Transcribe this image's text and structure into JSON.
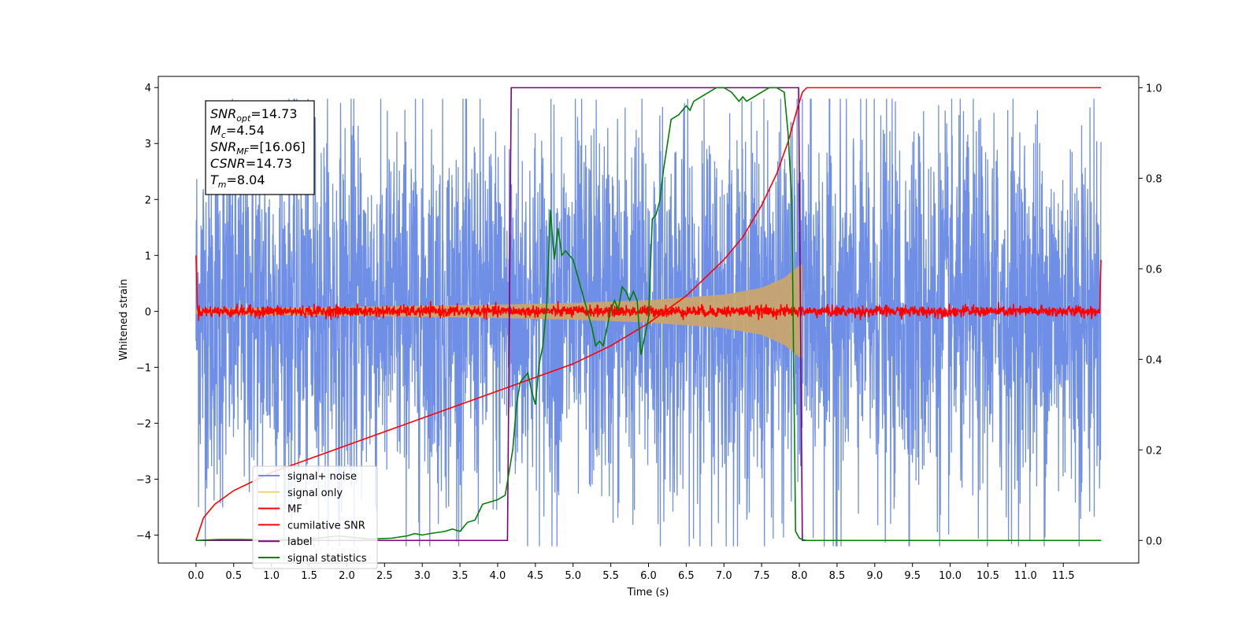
{
  "chart_data": {
    "type": "line",
    "xlabel": "Time (s)",
    "ylabel_left": "Whitened strain",
    "ylabel_right": "",
    "xlim": [
      -0.5,
      12.5
    ],
    "ylim_left": [
      -4.5,
      4.2
    ],
    "ylim_right": [
      -0.05,
      1.025
    ],
    "x_ticks": [
      0.0,
      0.5,
      1.0,
      1.5,
      2.0,
      2.5,
      3.0,
      3.5,
      4.0,
      4.5,
      5.0,
      5.5,
      6.0,
      6.5,
      7.0,
      7.5,
      8.0,
      8.5,
      9.0,
      9.5,
      10.0,
      10.5,
      11.0,
      11.5
    ],
    "x_tick_labels": [
      "0.0",
      "0.5",
      "1.0",
      "1.5",
      "2.0",
      "2.5",
      "3.0",
      "3.5",
      "4.0",
      "4.5",
      "5.0",
      "5.5",
      "6.0",
      "6.5",
      "7.0",
      "7.5",
      "8.0",
      "8.5",
      "9.0",
      "9.5",
      "10.0",
      "10.5",
      "11.0",
      "11.5"
    ],
    "y_ticks_left": [
      4,
      3,
      2,
      1,
      0,
      -1,
      -2,
      -3,
      -4
    ],
    "y_tick_labels_left": [
      "4",
      "3",
      "2",
      "1",
      "0",
      "−1",
      "−2",
      "−3",
      "−4"
    ],
    "y_ticks_right": [
      1.0,
      0.8,
      0.6,
      0.4,
      0.2,
      0.0
    ],
    "y_tick_labels_right": [
      "1.0",
      "0.8",
      "0.6",
      "0.4",
      "0.2",
      "0.0"
    ],
    "grid": false,
    "legend_position": "lower-left",
    "annotation": {
      "lines": [
        {
          "sym": "SNR",
          "sub": "opt",
          "val": "=14.73"
        },
        {
          "sym": "M",
          "sub": "c",
          "val": "=4.54"
        },
        {
          "sym": "SNR",
          "sub": "MF",
          "val": "=[16.06]"
        },
        {
          "sym": "CSNR",
          "sub": "",
          "val": "=14.73"
        },
        {
          "sym": "T",
          "sub": "m",
          "val": "=8.04"
        }
      ]
    },
    "series": [
      {
        "name": "signal+ noise",
        "axis": "left",
        "color": "#6f8fe6",
        "style": "noise",
        "x_range": [
          0.0,
          12.0
        ],
        "typical_amplitude": 2.0,
        "peak_range": [
          -4.2,
          3.8
        ]
      },
      {
        "name": "signal only",
        "axis": "left",
        "color": "#c8a56e",
        "style": "chirp-envelope",
        "x_range": [
          0.0,
          8.04
        ],
        "amplitude_points": [
          [
            0.0,
            0.05
          ],
          [
            2.0,
            0.08
          ],
          [
            4.0,
            0.12
          ],
          [
            5.0,
            0.15
          ],
          [
            6.0,
            0.2
          ],
          [
            7.0,
            0.3
          ],
          [
            7.5,
            0.42
          ],
          [
            7.8,
            0.6
          ],
          [
            8.0,
            0.82
          ],
          [
            8.04,
            0.85
          ]
        ]
      },
      {
        "name": "MF",
        "axis": "left",
        "color": "#ff0000",
        "style": "noise",
        "x_range": [
          0.0,
          12.0
        ],
        "typical_amplitude": 0.06,
        "edge_values": [
          1.0,
          0.92
        ]
      },
      {
        "name": "cumilative SNR",
        "axis": "right",
        "color": "#ff0000",
        "style": "line",
        "x": [
          0.0,
          0.1,
          0.25,
          0.5,
          1.0,
          1.5,
          2.0,
          2.5,
          3.0,
          3.5,
          4.0,
          4.5,
          5.0,
          5.5,
          6.0,
          6.5,
          7.0,
          7.25,
          7.5,
          7.7,
          7.85,
          7.95,
          8.04,
          8.1,
          12.0
        ],
        "y": [
          0.0,
          0.05,
          0.08,
          0.11,
          0.15,
          0.18,
          0.21,
          0.24,
          0.27,
          0.3,
          0.33,
          0.36,
          0.39,
          0.43,
          0.48,
          0.54,
          0.62,
          0.67,
          0.74,
          0.81,
          0.88,
          0.94,
          0.99,
          1.0,
          1.0
        ]
      },
      {
        "name": "label",
        "axis": "right",
        "color": "#7f007f",
        "style": "line",
        "x": [
          0.0,
          4.13,
          4.18,
          7.99,
          8.04,
          12.0
        ],
        "y": [
          0.0,
          0.0,
          1.0,
          1.0,
          0.0,
          0.0
        ]
      },
      {
        "name": "signal statistics",
        "axis": "right",
        "color": "#008000",
        "style": "line",
        "x": [
          0.0,
          0.3,
          0.6,
          1.0,
          1.5,
          1.9,
          2.0,
          2.3,
          2.6,
          2.8,
          2.9,
          3.0,
          3.1,
          3.3,
          3.4,
          3.5,
          3.6,
          3.7,
          3.8,
          3.9,
          4.0,
          4.1,
          4.2,
          4.25,
          4.3,
          4.4,
          4.45,
          4.5,
          4.55,
          4.6,
          4.65,
          4.7,
          4.75,
          4.8,
          4.85,
          4.9,
          5.0,
          5.1,
          5.2,
          5.25,
          5.3,
          5.35,
          5.4,
          5.5,
          5.55,
          5.6,
          5.65,
          5.7,
          5.75,
          5.8,
          5.85,
          5.9,
          5.95,
          6.0,
          6.05,
          6.1,
          6.15,
          6.2,
          6.3,
          6.4,
          6.5,
          6.55,
          6.6,
          6.7,
          6.8,
          6.9,
          7.0,
          7.1,
          7.2,
          7.25,
          7.3,
          7.4,
          7.5,
          7.6,
          7.7,
          7.8,
          7.85,
          7.9,
          7.95,
          8.0,
          8.05,
          8.1,
          8.3,
          8.6,
          12.0
        ],
        "y": [
          0.0,
          0.002,
          0.002,
          0.001,
          0.003,
          0.01,
          0.008,
          0.003,
          0.005,
          0.01,
          0.015,
          0.012,
          0.015,
          0.02,
          0.025,
          0.02,
          0.04,
          0.045,
          0.08,
          0.085,
          0.09,
          0.1,
          0.2,
          0.3,
          0.35,
          0.37,
          0.33,
          0.3,
          0.39,
          0.43,
          0.52,
          0.73,
          0.62,
          0.69,
          0.63,
          0.64,
          0.62,
          0.56,
          0.5,
          0.47,
          0.43,
          0.44,
          0.43,
          0.51,
          0.53,
          0.51,
          0.56,
          0.55,
          0.53,
          0.55,
          0.53,
          0.41,
          0.45,
          0.49,
          0.71,
          0.72,
          0.75,
          0.82,
          0.93,
          0.94,
          0.96,
          0.95,
          0.97,
          0.98,
          0.99,
          1.0,
          1.0,
          0.99,
          0.97,
          0.98,
          0.97,
          0.98,
          0.99,
          1.0,
          1.0,
          0.99,
          0.9,
          0.75,
          0.02,
          0.005,
          0.001,
          0.0,
          0.0,
          0.0,
          0.0
        ]
      }
    ]
  }
}
